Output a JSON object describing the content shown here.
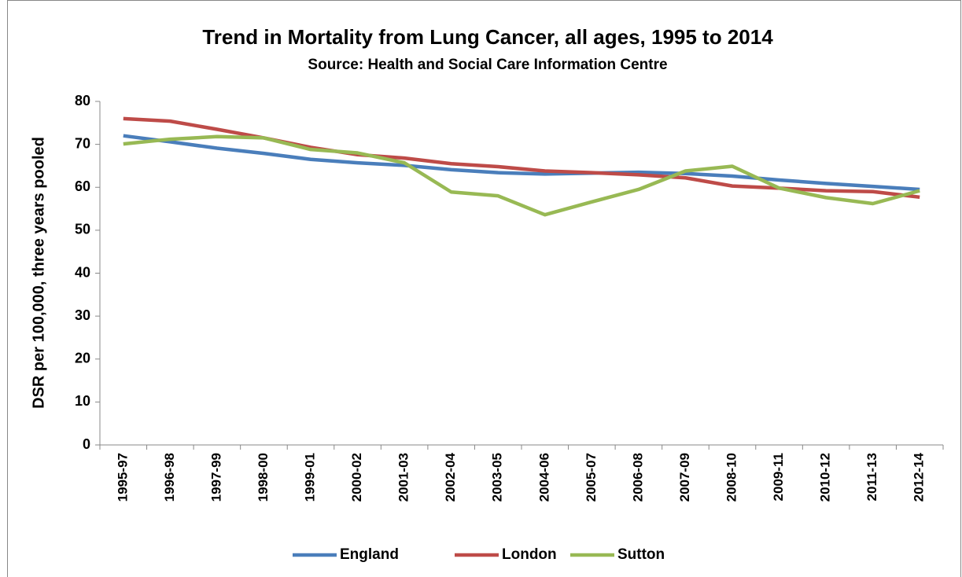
{
  "chart_data": {
    "type": "line",
    "title": "Trend in Mortality from Lung Cancer, all ages, 1995 to 2014",
    "subtitle": "Source: Health and Social Care Information Centre",
    "y_label": "DSR per 100,000, three years pooled",
    "categories": [
      "1995-97",
      "1996-98",
      "1997-99",
      "1998-00",
      "1999-01",
      "2000-02",
      "2001-03",
      "2002-04",
      "2003-05",
      "2004-06",
      "2005-07",
      "2006-08",
      "2007-09",
      "2008-10",
      "2009-11",
      "2010-12",
      "2011-13",
      "2012-14"
    ],
    "series": [
      {
        "name": "England",
        "color": "#4a7ebb",
        "values": [
          72.0,
          70.6,
          69.1,
          67.9,
          66.5,
          65.7,
          65.1,
          64.1,
          63.4,
          63.1,
          63.3,
          63.5,
          63.2,
          62.6,
          61.7,
          60.9,
          60.2,
          59.5
        ]
      },
      {
        "name": "London",
        "color": "#be4b48",
        "values": [
          76.0,
          75.4,
          73.5,
          71.5,
          69.3,
          67.6,
          66.8,
          65.5,
          64.8,
          63.8,
          63.4,
          62.9,
          62.2,
          60.3,
          59.8,
          59.2,
          59.0,
          57.7
        ]
      },
      {
        "name": "Sutton",
        "color": "#98b954",
        "values": [
          70.1,
          71.2,
          71.8,
          71.5,
          68.8,
          68.0,
          65.7,
          58.9,
          58.0,
          53.6,
          56.6,
          59.5,
          63.8,
          64.9,
          59.8,
          57.6,
          56.2,
          59.2
        ]
      }
    ],
    "ylim": [
      0,
      80
    ],
    "yticks": [
      0,
      10,
      20,
      30,
      40,
      50,
      60,
      70,
      80
    ],
    "legend": "bottom"
  }
}
